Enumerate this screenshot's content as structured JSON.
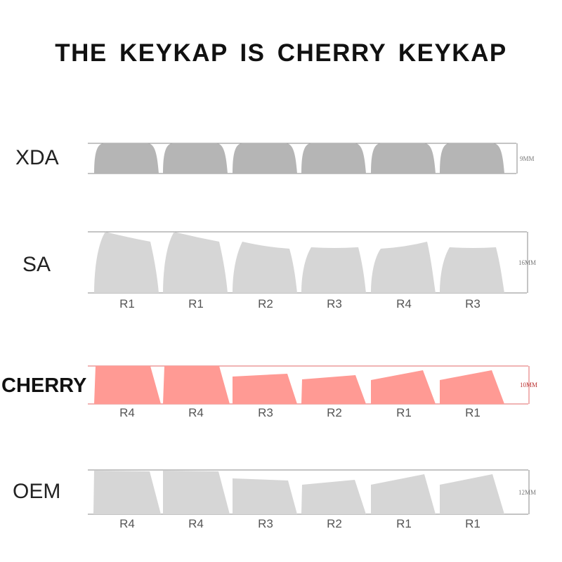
{
  "title": "THE KEYKAP IS CHERRY KEYKAP",
  "colors": {
    "gray_dark": "#b5b5b5",
    "gray_light": "#d6d6d6",
    "cherry_fill": "#ff9a94",
    "cherry_line": "#e06868",
    "guide_line": "#8a8a8a"
  },
  "profiles": [
    {
      "id": "xda",
      "name": "XDA",
      "height_label": "9MM",
      "row_labels": []
    },
    {
      "id": "sa",
      "name": "SA",
      "height_label": "16MM",
      "row_labels": [
        "R1",
        "R1",
        "R2",
        "R3",
        "R4",
        "R3"
      ]
    },
    {
      "id": "cherry",
      "name": "CHERRY",
      "height_label": "10MM",
      "row_labels": [
        "R4",
        "R4",
        "R3",
        "R2",
        "R1",
        "R1"
      ]
    },
    {
      "id": "oem",
      "name": "OEM",
      "height_label": "12MM",
      "row_labels": [
        "R4",
        "R4",
        "R3",
        "R2",
        "R1",
        "R1"
      ]
    }
  ]
}
